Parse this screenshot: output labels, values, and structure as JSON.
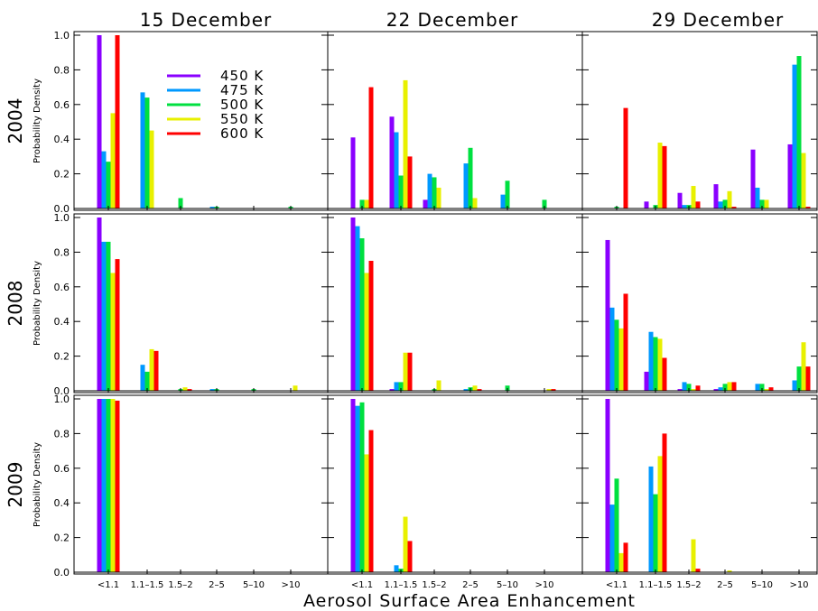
{
  "chart_data": {
    "type": "bar",
    "layout": "3x3 panel grid",
    "column_titles": [
      "15 December",
      "22 December",
      "29 December"
    ],
    "row_labels": [
      "2004",
      "2008",
      "2009"
    ],
    "xlabel": "Aerosol Surface Area Enhancement",
    "ylabel": "Probability Density",
    "ylim": [
      0,
      1.0
    ],
    "yticks": [
      "0.0",
      "0.2",
      "0.4",
      "0.6",
      "0.8",
      "1.0"
    ],
    "categories": [
      "<1.1",
      "1.1–1.5",
      "1.5–2",
      "2–5",
      "5–10",
      ">10"
    ],
    "series_names": [
      "450 K",
      "475 K",
      "500 K",
      "550 K",
      "600 K"
    ],
    "series_colors": [
      "#8a00ff",
      "#0099ff",
      "#00e040",
      "#e8f000",
      "#ff0000"
    ],
    "legend_position": "top-left panel",
    "panels": [
      {
        "row": 0,
        "col": 0,
        "values": [
          [
            1.0,
            0.0,
            0.0,
            0.0,
            0.0,
            0.0
          ],
          [
            0.33,
            0.67,
            0.0,
            0.01,
            0.0,
            0.0
          ],
          [
            0.27,
            0.64,
            0.06,
            0.01,
            0.0,
            0.01
          ],
          [
            0.55,
            0.45,
            0.0,
            0.0,
            0.0,
            0.0
          ],
          [
            1.0,
            0.0,
            0.0,
            0.0,
            0.0,
            0.0
          ]
        ]
      },
      {
        "row": 0,
        "col": 1,
        "values": [
          [
            0.41,
            0.53,
            0.05,
            0.0,
            0.0,
            0.0
          ],
          [
            0.0,
            0.44,
            0.2,
            0.26,
            0.08,
            0.0
          ],
          [
            0.05,
            0.19,
            0.18,
            0.35,
            0.16,
            0.05
          ],
          [
            0.05,
            0.74,
            0.12,
            0.06,
            0.0,
            0.0
          ],
          [
            0.7,
            0.3,
            0.0,
            0.0,
            0.0,
            0.0
          ]
        ]
      },
      {
        "row": 0,
        "col": 2,
        "values": [
          [
            0.0,
            0.04,
            0.09,
            0.14,
            0.34,
            0.37
          ],
          [
            0.0,
            0.0,
            0.02,
            0.04,
            0.12,
            0.83
          ],
          [
            0.01,
            0.02,
            0.02,
            0.05,
            0.05,
            0.88
          ],
          [
            0.0,
            0.38,
            0.13,
            0.1,
            0.05,
            0.32
          ],
          [
            0.58,
            0.36,
            0.04,
            0.01,
            0.0,
            0.01
          ]
        ]
      },
      {
        "row": 1,
        "col": 0,
        "values": [
          [
            1.0,
            0.0,
            0.0,
            0.0,
            0.0,
            0.0
          ],
          [
            0.86,
            0.15,
            0.0,
            0.01,
            0.0,
            0.0
          ],
          [
            0.86,
            0.11,
            0.01,
            0.01,
            0.01,
            0.0
          ],
          [
            0.68,
            0.24,
            0.02,
            0.0,
            0.0,
            0.03
          ],
          [
            0.76,
            0.23,
            0.01,
            0.0,
            0.0,
            0.0
          ]
        ]
      },
      {
        "row": 1,
        "col": 1,
        "values": [
          [
            1.0,
            0.01,
            0.0,
            0.0,
            0.0,
            0.0
          ],
          [
            0.95,
            0.05,
            0.0,
            0.01,
            0.0,
            0.0
          ],
          [
            0.88,
            0.05,
            0.01,
            0.02,
            0.03,
            0.0
          ],
          [
            0.68,
            0.22,
            0.06,
            0.03,
            0.0,
            0.01
          ],
          [
            0.75,
            0.22,
            0.0,
            0.01,
            0.0,
            0.01
          ]
        ]
      },
      {
        "row": 1,
        "col": 2,
        "values": [
          [
            0.87,
            0.11,
            0.01,
            0.01,
            0.0,
            0.0
          ],
          [
            0.48,
            0.34,
            0.05,
            0.02,
            0.04,
            0.06
          ],
          [
            0.41,
            0.31,
            0.04,
            0.04,
            0.04,
            0.14
          ],
          [
            0.36,
            0.3,
            0.01,
            0.05,
            0.01,
            0.28
          ],
          [
            0.56,
            0.19,
            0.03,
            0.05,
            0.02,
            0.14
          ]
        ]
      },
      {
        "row": 2,
        "col": 0,
        "values": [
          [
            1.0,
            0.0,
            0.0,
            0.0,
            0.0,
            0.0
          ],
          [
            1.0,
            0.0,
            0.0,
            0.0,
            0.0,
            0.0
          ],
          [
            1.0,
            0.0,
            0.0,
            0.0,
            0.0,
            0.0
          ],
          [
            1.0,
            0.0,
            0.0,
            0.0,
            0.0,
            0.0
          ],
          [
            0.99,
            0.0,
            0.0,
            0.0,
            0.0,
            0.0
          ]
        ]
      },
      {
        "row": 2,
        "col": 1,
        "values": [
          [
            1.0,
            0.0,
            0.0,
            0.0,
            0.0,
            0.0
          ],
          [
            0.96,
            0.04,
            0.0,
            0.0,
            0.0,
            0.0
          ],
          [
            0.98,
            0.02,
            0.0,
            0.0,
            0.0,
            0.0
          ],
          [
            0.68,
            0.32,
            0.0,
            0.0,
            0.0,
            0.0
          ],
          [
            0.82,
            0.18,
            0.0,
            0.0,
            0.0,
            0.0
          ]
        ]
      },
      {
        "row": 2,
        "col": 2,
        "values": [
          [
            1.0,
            0.0,
            0.0,
            0.0,
            0.0,
            0.0
          ],
          [
            0.39,
            0.61,
            0.0,
            0.0,
            0.0,
            0.0
          ],
          [
            0.54,
            0.45,
            0.0,
            0.0,
            0.0,
            0.0
          ],
          [
            0.11,
            0.67,
            0.19,
            0.01,
            0.0,
            0.0
          ],
          [
            0.17,
            0.8,
            0.02,
            0.0,
            0.0,
            0.0
          ]
        ]
      }
    ]
  }
}
